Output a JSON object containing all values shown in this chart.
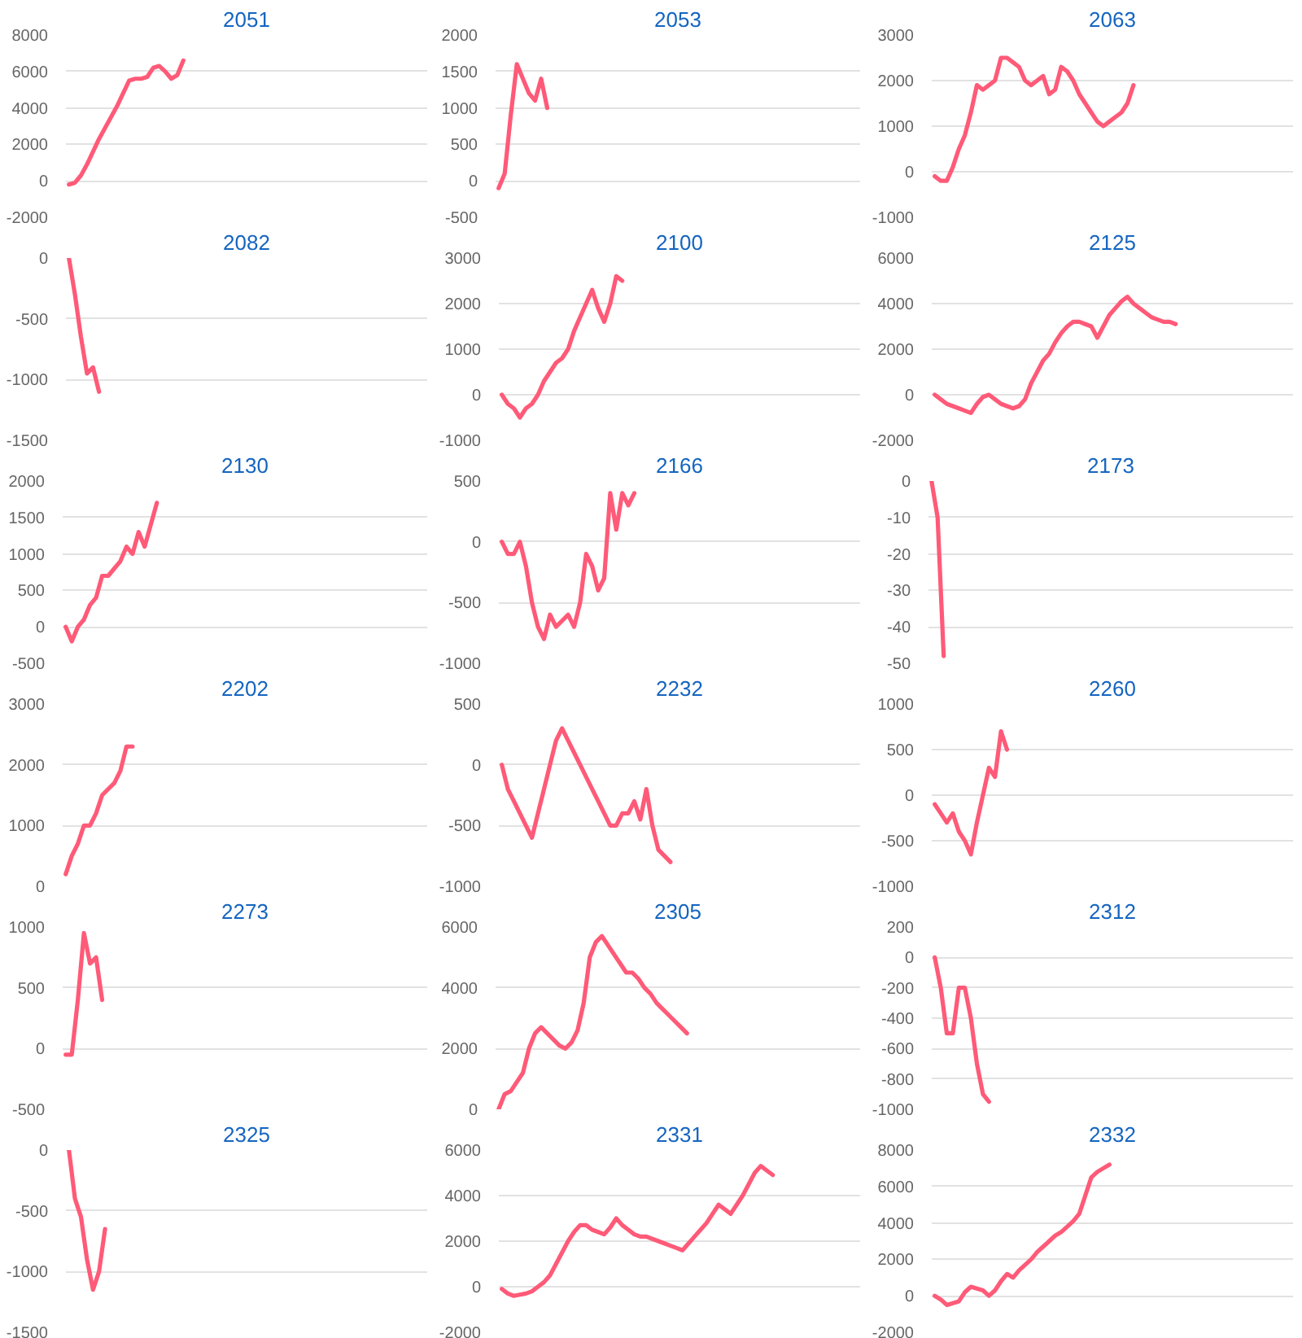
{
  "chart_data": [
    {
      "type": "line",
      "title": "2051",
      "color": "#ff5a78",
      "grid": "y",
      "tick_labels": "y",
      "ylim": [
        -2000,
        8000
      ],
      "yticks": [
        -2000,
        0,
        2000,
        4000,
        6000,
        8000
      ],
      "categories": [
        null,
        null,
        null,
        null,
        null,
        null,
        null,
        null,
        null,
        null,
        null,
        null,
        null,
        null,
        null,
        null,
        null,
        null,
        null,
        null,
        null,
        null,
        null,
        null,
        null,
        null,
        null,
        null,
        null,
        null,
        null,
        null,
        null,
        null,
        null,
        null,
        null,
        null,
        null,
        null,
        null,
        null,
        null,
        null,
        null,
        null,
        null,
        null,
        null,
        null,
        null,
        null,
        null,
        null,
        null,
        null,
        null,
        null,
        null,
        null
      ],
      "values": [
        -200,
        -100,
        300,
        900,
        1600,
        2300,
        2900,
        3500,
        4100,
        4800,
        5500,
        5600,
        5600,
        5700,
        6200,
        6300,
        6000,
        5600,
        5800,
        6600,
        null,
        null,
        null,
        null,
        null,
        null,
        null,
        null,
        null,
        null,
        null,
        null,
        null,
        null,
        null,
        null,
        null,
        null,
        null,
        null,
        null,
        null,
        null,
        null,
        null,
        null,
        null,
        null,
        null,
        null,
        null,
        null,
        null,
        null,
        null,
        null,
        null,
        null,
        null,
        null
      ]
    },
    {
      "type": "line",
      "title": "2053",
      "color": "#ff5a78",
      "grid": "y",
      "tick_labels": "y",
      "ylim": [
        -500,
        2000
      ],
      "yticks": [
        -500,
        0,
        500,
        1000,
        1500,
        2000
      ],
      "categories": [
        null,
        null,
        null,
        null,
        null,
        null,
        null,
        null,
        null,
        null,
        null,
        null,
        null,
        null,
        null,
        null,
        null,
        null,
        null,
        null,
        null,
        null,
        null,
        null,
        null,
        null,
        null,
        null,
        null,
        null,
        null,
        null,
        null,
        null,
        null,
        null,
        null,
        null,
        null,
        null,
        null,
        null,
        null,
        null,
        null,
        null,
        null,
        null,
        null,
        null,
        null,
        null,
        null,
        null,
        null,
        null,
        null,
        null,
        null,
        null
      ],
      "values": [
        -100,
        100,
        900,
        1600,
        1400,
        1200,
        1100,
        1400,
        1000,
        null,
        null,
        null,
        null,
        null,
        null,
        null,
        null,
        null,
        null,
        null,
        null,
        null,
        null,
        null,
        null,
        null,
        null,
        null,
        null,
        null,
        null,
        null,
        null,
        null,
        null,
        null,
        null,
        null,
        null,
        null,
        null,
        null,
        null,
        null,
        null,
        null,
        null,
        null,
        null,
        null,
        null,
        null,
        null,
        null,
        null,
        null,
        null,
        null,
        null,
        null
      ]
    },
    {
      "type": "line",
      "title": "2063",
      "color": "#ff5a78",
      "grid": "y",
      "tick_labels": "y",
      "ylim": [
        -1000,
        3000
      ],
      "yticks": [
        -1000,
        0,
        1000,
        2000,
        3000
      ],
      "categories": [
        null,
        null,
        null,
        null,
        null,
        null,
        null,
        null,
        null,
        null,
        null,
        null,
        null,
        null,
        null,
        null,
        null,
        null,
        null,
        null,
        null,
        null,
        null,
        null,
        null,
        null,
        null,
        null,
        null,
        null,
        null,
        null,
        null,
        null,
        null,
        null,
        null,
        null,
        null,
        null,
        null,
        null,
        null,
        null,
        null,
        null,
        null,
        null,
        null,
        null,
        null,
        null,
        null,
        null,
        null,
        null,
        null,
        null,
        null,
        null
      ],
      "values": [
        -100,
        -200,
        -200,
        100,
        500,
        800,
        1300,
        1900,
        1800,
        1900,
        2000,
        2500,
        2500,
        2400,
        2300,
        2000,
        1900,
        2000,
        2100,
        1700,
        1800,
        2300,
        2200,
        2000,
        1700,
        1500,
        1300,
        1100,
        1000,
        1100,
        1200,
        1300,
        1500,
        1900,
        null,
        null,
        null,
        null,
        null,
        null,
        null,
        null,
        null,
        null,
        null,
        null,
        null,
        null,
        null,
        null,
        null,
        null,
        null,
        null,
        null,
        null,
        null,
        null,
        null,
        null
      ]
    },
    {
      "type": "line",
      "title": "2082",
      "color": "#ff5a78",
      "grid": "y",
      "tick_labels": "y",
      "ylim": [
        -1500,
        0
      ],
      "yticks": [
        -1500,
        -1000,
        -500,
        0
      ],
      "categories": [
        null,
        null,
        null,
        null,
        null,
        null,
        null,
        null,
        null,
        null,
        null,
        null,
        null,
        null,
        null,
        null,
        null,
        null,
        null,
        null,
        null,
        null,
        null,
        null,
        null,
        null,
        null,
        null,
        null,
        null,
        null,
        null,
        null,
        null,
        null,
        null,
        null,
        null,
        null,
        null,
        null,
        null,
        null,
        null,
        null,
        null,
        null,
        null,
        null,
        null,
        null,
        null,
        null,
        null,
        null,
        null,
        null,
        null,
        null,
        null
      ],
      "values": [
        0,
        -300,
        -650,
        -950,
        -900,
        -1100,
        null,
        null,
        null,
        null,
        null,
        null,
        null,
        null,
        null,
        null,
        null,
        null,
        null,
        null,
        null,
        null,
        null,
        null,
        null,
        null,
        null,
        null,
        null,
        null,
        null,
        null,
        null,
        null,
        null,
        null,
        null,
        null,
        null,
        null,
        null,
        null,
        null,
        null,
        null,
        null,
        null,
        null,
        null,
        null,
        null,
        null,
        null,
        null,
        null,
        null,
        null,
        null,
        null,
        null
      ]
    },
    {
      "type": "line",
      "title": "2100",
      "color": "#ff5a78",
      "grid": "y",
      "tick_labels": "y",
      "ylim": [
        -1000,
        3000
      ],
      "yticks": [
        -1000,
        0,
        1000,
        2000,
        3000
      ],
      "categories": [
        null,
        null,
        null,
        null,
        null,
        null,
        null,
        null,
        null,
        null,
        null,
        null,
        null,
        null,
        null,
        null,
        null,
        null,
        null,
        null,
        null,
        null,
        null,
        null,
        null,
        null,
        null,
        null,
        null,
        null,
        null,
        null,
        null,
        null,
        null,
        null,
        null,
        null,
        null,
        null,
        null,
        null,
        null,
        null,
        null,
        null,
        null,
        null,
        null,
        null,
        null,
        null,
        null,
        null,
        null,
        null,
        null,
        null,
        null,
        null
      ],
      "values": [
        0,
        -200,
        -300,
        -500,
        -300,
        -200,
        0,
        300,
        500,
        700,
        800,
        1000,
        1400,
        1700,
        2000,
        2300,
        1900,
        1600,
        2000,
        2600,
        2500,
        null,
        null,
        null,
        null,
        null,
        null,
        null,
        null,
        null,
        null,
        null,
        null,
        null,
        null,
        null,
        null,
        null,
        null,
        null,
        null,
        null,
        null,
        null,
        null,
        null,
        null,
        null,
        null,
        null,
        null,
        null,
        null,
        null,
        null,
        null,
        null,
        null,
        null,
        null
      ]
    },
    {
      "type": "line",
      "title": "2125",
      "color": "#ff5a78",
      "grid": "y",
      "tick_labels": "y",
      "ylim": [
        -2000,
        6000
      ],
      "yticks": [
        -2000,
        0,
        2000,
        4000,
        6000
      ],
      "categories": [
        null,
        null,
        null,
        null,
        null,
        null,
        null,
        null,
        null,
        null,
        null,
        null,
        null,
        null,
        null,
        null,
        null,
        null,
        null,
        null,
        null,
        null,
        null,
        null,
        null,
        null,
        null,
        null,
        null,
        null,
        null,
        null,
        null,
        null,
        null,
        null,
        null,
        null,
        null,
        null,
        null,
        null,
        null,
        null,
        null,
        null,
        null,
        null,
        null,
        null,
        null,
        null,
        null,
        null,
        null,
        null,
        null,
        null,
        null,
        null
      ],
      "values": [
        0,
        -200,
        -400,
        -500,
        -600,
        -700,
        -800,
        -400,
        -100,
        0,
        -200,
        -400,
        -500,
        -600,
        -500,
        -200,
        500,
        1000,
        1500,
        1800,
        2300,
        2700,
        3000,
        3200,
        3200,
        3100,
        3000,
        2500,
        3000,
        3500,
        3800,
        4100,
        4300,
        4000,
        3800,
        3600,
        3400,
        3300,
        3200,
        3200,
        3100,
        null,
        null,
        null,
        null,
        null,
        null,
        null,
        null,
        null,
        null,
        null,
        null,
        null,
        null,
        null,
        null,
        null,
        null,
        null
      ]
    },
    {
      "type": "line",
      "title": "2130",
      "color": "#ff5a78",
      "grid": "y",
      "tick_labels": "y",
      "ylim": [
        -500,
        2000
      ],
      "yticks": [
        -500,
        0,
        500,
        1000,
        1500,
        2000
      ],
      "categories": [
        null,
        null,
        null,
        null,
        null,
        null,
        null,
        null,
        null,
        null,
        null,
        null,
        null,
        null,
        null,
        null,
        null,
        null,
        null,
        null,
        null,
        null,
        null,
        null,
        null,
        null,
        null,
        null,
        null,
        null,
        null,
        null,
        null,
        null,
        null,
        null,
        null,
        null,
        null,
        null,
        null,
        null,
        null,
        null,
        null,
        null,
        null,
        null,
        null,
        null,
        null,
        null,
        null,
        null,
        null,
        null,
        null,
        null,
        null,
        null
      ],
      "values": [
        0,
        -200,
        0,
        100,
        300,
        400,
        700,
        700,
        800,
        900,
        1100,
        1000,
        1300,
        1100,
        1400,
        1700,
        null,
        null,
        null,
        null,
        null,
        null,
        null,
        null,
        null,
        null,
        null,
        null,
        null,
        null,
        null,
        null,
        null,
        null,
        null,
        null,
        null,
        null,
        null,
        null,
        null,
        null,
        null,
        null,
        null,
        null,
        null,
        null,
        null,
        null,
        null,
        null,
        null,
        null,
        null,
        null,
        null,
        null,
        null,
        null
      ]
    },
    {
      "type": "line",
      "title": "2166",
      "color": "#ff5a78",
      "grid": "y",
      "tick_labels": "y",
      "ylim": [
        -1000,
        500
      ],
      "yticks": [
        -1000,
        -500,
        0,
        500
      ],
      "categories": [
        null,
        null,
        null,
        null,
        null,
        null,
        null,
        null,
        null,
        null,
        null,
        null,
        null,
        null,
        null,
        null,
        null,
        null,
        null,
        null,
        null,
        null,
        null,
        null,
        null,
        null,
        null,
        null,
        null,
        null,
        null,
        null,
        null,
        null,
        null,
        null,
        null,
        null,
        null,
        null,
        null,
        null,
        null,
        null,
        null,
        null,
        null,
        null,
        null,
        null,
        null,
        null,
        null,
        null,
        null,
        null,
        null,
        null,
        null,
        null
      ],
      "values": [
        0,
        -100,
        -100,
        0,
        -200,
        -500,
        -700,
        -800,
        -600,
        -700,
        -650,
        -600,
        -700,
        -500,
        -100,
        -200,
        -400,
        -300,
        400,
        100,
        400,
        300,
        400,
        null,
        null,
        null,
        null,
        null,
        null,
        null,
        null,
        null,
        null,
        null,
        null,
        null,
        null,
        null,
        null,
        null,
        null,
        null,
        null,
        null,
        null,
        null,
        null,
        null,
        null,
        null,
        null,
        null,
        null,
        null,
        null,
        null,
        null,
        null,
        null,
        null
      ]
    },
    {
      "type": "line",
      "title": "2173",
      "color": "#ff5a78",
      "grid": "y",
      "tick_labels": "y",
      "ylim": [
        -50,
        0
      ],
      "yticks": [
        -50,
        -40,
        -30,
        -20,
        -10,
        0
      ],
      "categories": [
        null,
        null,
        null,
        null,
        null,
        null,
        null,
        null,
        null,
        null,
        null,
        null,
        null,
        null,
        null,
        null,
        null,
        null,
        null,
        null,
        null,
        null,
        null,
        null,
        null,
        null,
        null,
        null,
        null,
        null,
        null,
        null,
        null,
        null,
        null,
        null,
        null,
        null,
        null,
        null,
        null,
        null,
        null,
        null,
        null,
        null,
        null,
        null,
        null,
        null,
        null,
        null,
        null,
        null,
        null,
        null,
        null,
        null,
        null,
        null
      ],
      "values": [
        0,
        -10,
        -48,
        null,
        null,
        null,
        null,
        null,
        null,
        null,
        null,
        null,
        null,
        null,
        null,
        null,
        null,
        null,
        null,
        null,
        null,
        null,
        null,
        null,
        null,
        null,
        null,
        null,
        null,
        null,
        null,
        null,
        null,
        null,
        null,
        null,
        null,
        null,
        null,
        null,
        null,
        null,
        null,
        null,
        null,
        null,
        null,
        null,
        null,
        null,
        null,
        null,
        null,
        null,
        null,
        null,
        null,
        null,
        null,
        null
      ]
    },
    {
      "type": "line",
      "title": "2202",
      "color": "#ff5a78",
      "grid": "y",
      "tick_labels": "y",
      "ylim": [
        0,
        3000
      ],
      "yticks": [
        0,
        1000,
        2000,
        3000
      ],
      "categories": [
        null,
        null,
        null,
        null,
        null,
        null,
        null,
        null,
        null,
        null,
        null,
        null,
        null,
        null,
        null,
        null,
        null,
        null,
        null,
        null,
        null,
        null,
        null,
        null,
        null,
        null,
        null,
        null,
        null,
        null,
        null,
        null,
        null,
        null,
        null,
        null,
        null,
        null,
        null,
        null,
        null,
        null,
        null,
        null,
        null,
        null,
        null,
        null,
        null,
        null,
        null,
        null,
        null,
        null,
        null,
        null,
        null,
        null,
        null,
        null
      ],
      "values": [
        200,
        500,
        700,
        1000,
        1000,
        1200,
        1500,
        1600,
        1700,
        1900,
        2300,
        2300,
        null,
        null,
        null,
        null,
        null,
        null,
        null,
        null,
        null,
        null,
        null,
        null,
        null,
        null,
        null,
        null,
        null,
        null,
        null,
        null,
        null,
        null,
        null,
        null,
        null,
        null,
        null,
        null,
        null,
        null,
        null,
        null,
        null,
        null,
        null,
        null,
        null,
        null,
        null,
        null,
        null,
        null,
        null,
        null,
        null,
        null,
        null,
        null
      ]
    },
    {
      "type": "line",
      "title": "2232",
      "color": "#ff5a78",
      "grid": "y",
      "tick_labels": "y",
      "ylim": [
        -1000,
        500
      ],
      "yticks": [
        -1000,
        -500,
        0,
        500
      ],
      "categories": [
        null,
        null,
        null,
        null,
        null,
        null,
        null,
        null,
        null,
        null,
        null,
        null,
        null,
        null,
        null,
        null,
        null,
        null,
        null,
        null,
        null,
        null,
        null,
        null,
        null,
        null,
        null,
        null,
        null,
        null,
        null,
        null,
        null,
        null,
        null,
        null,
        null,
        null,
        null,
        null,
        null,
        null,
        null,
        null,
        null,
        null,
        null,
        null,
        null,
        null,
        null,
        null,
        null,
        null,
        null,
        null,
        null,
        null,
        null,
        null
      ],
      "values": [
        0,
        -200,
        -300,
        -400,
        -500,
        -600,
        -400,
        -200,
        0,
        200,
        300,
        200,
        100,
        0,
        -100,
        -200,
        -300,
        -400,
        -500,
        -500,
        -400,
        -400,
        -300,
        -450,
        -200,
        -500,
        -700,
        -750,
        -800,
        null,
        null,
        null,
        null,
        null,
        null,
        null,
        null,
        null,
        null,
        null,
        null,
        null,
        null,
        null,
        null,
        null,
        null,
        null,
        null,
        null,
        null,
        null,
        null,
        null,
        null,
        null,
        null,
        null,
        null,
        null
      ]
    },
    {
      "type": "line",
      "title": "2260",
      "color": "#ff5a78",
      "grid": "y",
      "tick_labels": "y",
      "ylim": [
        -1000,
        1000
      ],
      "yticks": [
        -1000,
        -500,
        0,
        500,
        1000
      ],
      "categories": [
        null,
        null,
        null,
        null,
        null,
        null,
        null,
        null,
        null,
        null,
        null,
        null,
        null,
        null,
        null,
        null,
        null,
        null,
        null,
        null,
        null,
        null,
        null,
        null,
        null,
        null,
        null,
        null,
        null,
        null,
        null,
        null,
        null,
        null,
        null,
        null,
        null,
        null,
        null,
        null,
        null,
        null,
        null,
        null,
        null,
        null,
        null,
        null,
        null,
        null,
        null,
        null,
        null,
        null,
        null,
        null,
        null,
        null,
        null,
        null
      ],
      "values": [
        -100,
        -200,
        -300,
        -200,
        -400,
        -500,
        -650,
        -300,
        0,
        300,
        200,
        700,
        500,
        null,
        null,
        null,
        null,
        null,
        null,
        null,
        null,
        null,
        null,
        null,
        null,
        null,
        null,
        null,
        null,
        null,
        null,
        null,
        null,
        null,
        null,
        null,
        null,
        null,
        null,
        null,
        null,
        null,
        null,
        null,
        null,
        null,
        null,
        null,
        null,
        null,
        null,
        null,
        null,
        null,
        null,
        null,
        null,
        null,
        null,
        null
      ]
    },
    {
      "type": "line",
      "title": "2273",
      "color": "#ff5a78",
      "grid": "y",
      "tick_labels": "y",
      "ylim": [
        -500,
        1000
      ],
      "yticks": [
        -500,
        0,
        500,
        1000
      ],
      "categories": [
        null,
        null,
        null,
        null,
        null,
        null,
        null,
        null,
        null,
        null,
        null,
        null,
        null,
        null,
        null,
        null,
        null,
        null,
        null,
        null,
        null,
        null,
        null,
        null,
        null,
        null,
        null,
        null,
        null,
        null,
        null,
        null,
        null,
        null,
        null,
        null,
        null,
        null,
        null,
        null,
        null,
        null,
        null,
        null,
        null,
        null,
        null,
        null,
        null,
        null,
        null,
        null,
        null,
        null,
        null,
        null,
        null,
        null,
        null,
        null
      ],
      "values": [
        -50,
        -50,
        400,
        950,
        700,
        750,
        400,
        null,
        null,
        null,
        null,
        null,
        null,
        null,
        null,
        null,
        null,
        null,
        null,
        null,
        null,
        null,
        null,
        null,
        null,
        null,
        null,
        null,
        null,
        null,
        null,
        null,
        null,
        null,
        null,
        null,
        null,
        null,
        null,
        null,
        null,
        null,
        null,
        null,
        null,
        null,
        null,
        null,
        null,
        null,
        null,
        null,
        null,
        null,
        null,
        null,
        null,
        null,
        null,
        null
      ]
    },
    {
      "type": "line",
      "title": "2305",
      "color": "#ff5a78",
      "grid": "y",
      "tick_labels": "y",
      "ylim": [
        0,
        6000
      ],
      "yticks": [
        0,
        2000,
        4000,
        6000
      ],
      "categories": [
        null,
        null,
        null,
        null,
        null,
        null,
        null,
        null,
        null,
        null,
        null,
        null,
        null,
        null,
        null,
        null,
        null,
        null,
        null,
        null,
        null,
        null,
        null,
        null,
        null,
        null,
        null,
        null,
        null,
        null,
        null,
        null,
        null,
        null,
        null,
        null,
        null,
        null,
        null,
        null,
        null,
        null,
        null,
        null,
        null,
        null,
        null,
        null,
        null,
        null,
        null,
        null,
        null,
        null,
        null,
        null,
        null,
        null,
        null,
        null
      ],
      "values": [
        0,
        500,
        600,
        900,
        1200,
        2000,
        2500,
        2700,
        2500,
        2300,
        2100,
        2000,
        2200,
        2600,
        3500,
        5000,
        5500,
        5700,
        5400,
        5100,
        4800,
        4500,
        4500,
        4300,
        4000,
        3800,
        3500,
        3300,
        3100,
        2900,
        2700,
        2500,
        null,
        null,
        null,
        null,
        null,
        null,
        null,
        null,
        null,
        null,
        null,
        null,
        null,
        null,
        null,
        null,
        null,
        null,
        null,
        null,
        null,
        null,
        null,
        null,
        null,
        null,
        null,
        null
      ]
    },
    {
      "type": "line",
      "title": "2312",
      "color": "#ff5a78",
      "grid": "y",
      "tick_labels": "y",
      "ylim": [
        -1000,
        200
      ],
      "yticks": [
        -1000,
        -800,
        -600,
        -400,
        -200,
        0,
        200
      ],
      "categories": [
        null,
        null,
        null,
        null,
        null,
        null,
        null,
        null,
        null,
        null,
        null,
        null,
        null,
        null,
        null,
        null,
        null,
        null,
        null,
        null,
        null,
        null,
        null,
        null,
        null,
        null,
        null,
        null,
        null,
        null,
        null,
        null,
        null,
        null,
        null,
        null,
        null,
        null,
        null,
        null,
        null,
        null,
        null,
        null,
        null,
        null,
        null,
        null,
        null,
        null,
        null,
        null,
        null,
        null,
        null,
        null,
        null,
        null,
        null,
        null
      ],
      "values": [
        0,
        -200,
        -500,
        -500,
        -200,
        -200,
        -400,
        -700,
        -900,
        -950,
        null,
        null,
        null,
        null,
        null,
        null,
        null,
        null,
        null,
        null,
        null,
        null,
        null,
        null,
        null,
        null,
        null,
        null,
        null,
        null,
        null,
        null,
        null,
        null,
        null,
        null,
        null,
        null,
        null,
        null,
        null,
        null,
        null,
        null,
        null,
        null,
        null,
        null,
        null,
        null,
        null,
        null,
        null,
        null,
        null,
        null,
        null,
        null,
        null,
        null
      ]
    },
    {
      "type": "line",
      "title": "2325",
      "color": "#ff5a78",
      "grid": "y",
      "tick_labels": "y",
      "ylim": [
        -1500,
        0
      ],
      "yticks": [
        -1500,
        -1000,
        -500,
        0
      ],
      "categories": [
        null,
        null,
        null,
        null,
        null,
        null,
        null,
        null,
        null,
        null,
        null,
        null,
        null,
        null,
        null,
        null,
        null,
        null,
        null,
        null,
        null,
        null,
        null,
        null,
        null,
        null,
        null,
        null,
        null,
        null,
        null,
        null,
        null,
        null,
        null,
        null,
        null,
        null,
        null,
        null,
        null,
        null,
        null,
        null,
        null,
        null,
        null,
        null,
        null,
        null,
        null,
        null,
        null,
        null,
        null,
        null,
        null,
        null,
        null,
        null
      ],
      "values": [
        0,
        -400,
        -550,
        -900,
        -1150,
        -1000,
        -650,
        null,
        null,
        null,
        null,
        null,
        null,
        null,
        null,
        null,
        null,
        null,
        null,
        null,
        null,
        null,
        null,
        null,
        null,
        null,
        null,
        null,
        null,
        null,
        null,
        null,
        null,
        null,
        null,
        null,
        null,
        null,
        null,
        null,
        null,
        null,
        null,
        null,
        null,
        null,
        null,
        null,
        null,
        null,
        null,
        null,
        null,
        null,
        null,
        null,
        null,
        null,
        null,
        null
      ]
    },
    {
      "type": "line",
      "title": "2331",
      "color": "#ff5a78",
      "grid": "y",
      "tick_labels": "y",
      "ylim": [
        -2000,
        6000
      ],
      "yticks": [
        -2000,
        0,
        2000,
        4000,
        6000
      ],
      "categories": [
        null,
        null,
        null,
        null,
        null,
        null,
        null,
        null,
        null,
        null,
        null,
        null,
        null,
        null,
        null,
        null,
        null,
        null,
        null,
        null,
        null,
        null,
        null,
        null,
        null,
        null,
        null,
        null,
        null,
        null,
        null,
        null,
        null,
        null,
        null,
        null,
        null,
        null,
        null,
        null,
        null,
        null,
        null,
        null,
        null,
        null,
        null,
        null,
        null,
        null,
        null,
        null,
        null,
        null,
        null,
        null,
        null,
        null,
        null,
        null
      ],
      "values": [
        -100,
        -300,
        -400,
        -350,
        -300,
        -200,
        0,
        200,
        500,
        1000,
        1500,
        2000,
        2400,
        2700,
        2700,
        2500,
        2400,
        2300,
        2600,
        3000,
        2700,
        2500,
        2300,
        2200,
        2200,
        2100,
        2000,
        1900,
        1800,
        1700,
        1600,
        1900,
        2200,
        2500,
        2800,
        3200,
        3600,
        3400,
        3200,
        3600,
        4000,
        4500,
        5000,
        5300,
        5100,
        4900,
        null,
        null,
        null,
        null,
        null,
        null,
        null,
        null,
        null,
        null,
        null,
        null,
        null,
        null
      ]
    },
    {
      "type": "line",
      "title": "2332",
      "color": "#ff5a78",
      "grid": "y",
      "tick_labels": "y",
      "ylim": [
        -2000,
        8000
      ],
      "yticks": [
        -2000,
        0,
        2000,
        4000,
        6000,
        8000
      ],
      "categories": [
        null,
        null,
        null,
        null,
        null,
        null,
        null,
        null,
        null,
        null,
        null,
        null,
        null,
        null,
        null,
        null,
        null,
        null,
        null,
        null,
        null,
        null,
        null,
        null,
        null,
        null,
        null,
        null,
        null,
        null,
        null,
        null,
        null,
        null,
        null,
        null,
        null,
        null,
        null,
        null,
        null,
        null,
        null,
        null,
        null,
        null,
        null,
        null,
        null,
        null,
        null,
        null,
        null,
        null,
        null,
        null,
        null,
        null,
        null,
        null
      ],
      "values": [
        0,
        -200,
        -500,
        -400,
        -300,
        200,
        500,
        400,
        300,
        0,
        300,
        800,
        1200,
        1000,
        1400,
        1700,
        2000,
        2400,
        2700,
        3000,
        3300,
        3500,
        3800,
        4100,
        4500,
        5500,
        6500,
        6800,
        7000,
        7200,
        null,
        null,
        null,
        null,
        null,
        null,
        null,
        null,
        null,
        null,
        null,
        null,
        null,
        null,
        null,
        null,
        null,
        null,
        null,
        null,
        null,
        null,
        null,
        null,
        null,
        null,
        null,
        null,
        null,
        null
      ]
    }
  ]
}
